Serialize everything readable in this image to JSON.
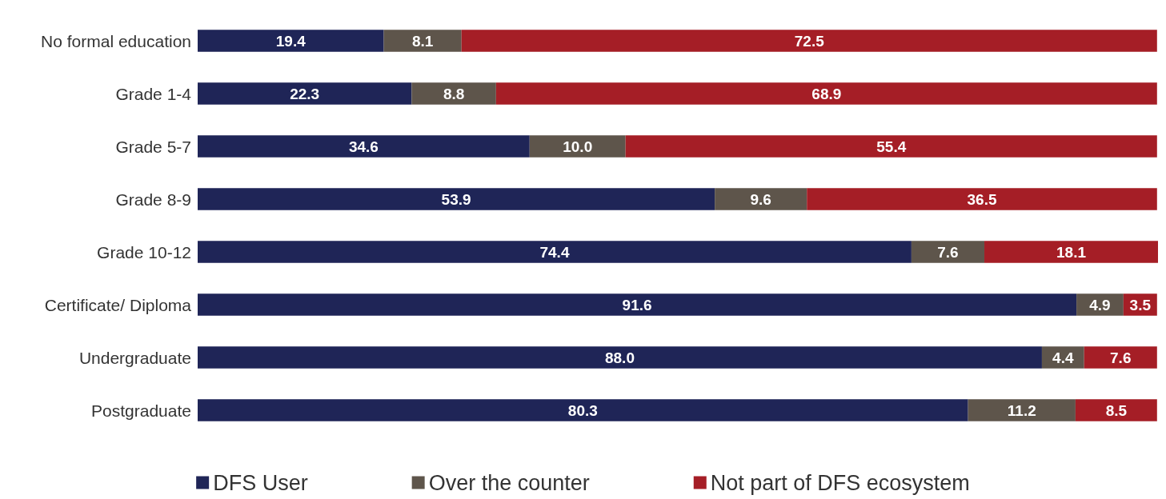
{
  "chart_data": {
    "type": "bar",
    "orientation": "horizontal",
    "stacked": true,
    "legend": "bottom",
    "categories": [
      "No formal education",
      "Grade 1-4",
      "Grade 5-7",
      "Grade 8-9",
      "Grade 10-12",
      "Certificate/ Diploma",
      "Undergraduate",
      "Postgraduate"
    ],
    "series": [
      {
        "name": "DFS User",
        "color": "#1f2557",
        "values": [
          19.4,
          22.3,
          34.6,
          53.9,
          74.4,
          91.6,
          88.0,
          80.3
        ],
        "value_labels": [
          "19.4",
          "22.3",
          "34.6",
          "53.9",
          "74.4",
          "91.6",
          "88.0",
          "80.3"
        ]
      },
      {
        "name": "Over the counter",
        "color": "#5e554b",
        "values": [
          8.1,
          8.8,
          10.0,
          9.6,
          7.6,
          4.9,
          4.4,
          11.2
        ],
        "value_labels": [
          "8.1",
          "8.8",
          "10.0",
          "9.6",
          "7.6",
          "4.9",
          "4.4",
          "11.2"
        ]
      },
      {
        "name": "Not part of DFS ecosystem",
        "color": "#a51e26",
        "values": [
          72.5,
          68.9,
          55.4,
          36.5,
          18.1,
          3.5,
          7.6,
          8.5
        ],
        "value_labels": [
          "72.5",
          "68.9",
          "55.4",
          "36.5",
          "18.1",
          "3.5",
          "7.6",
          "8.5"
        ]
      }
    ]
  }
}
